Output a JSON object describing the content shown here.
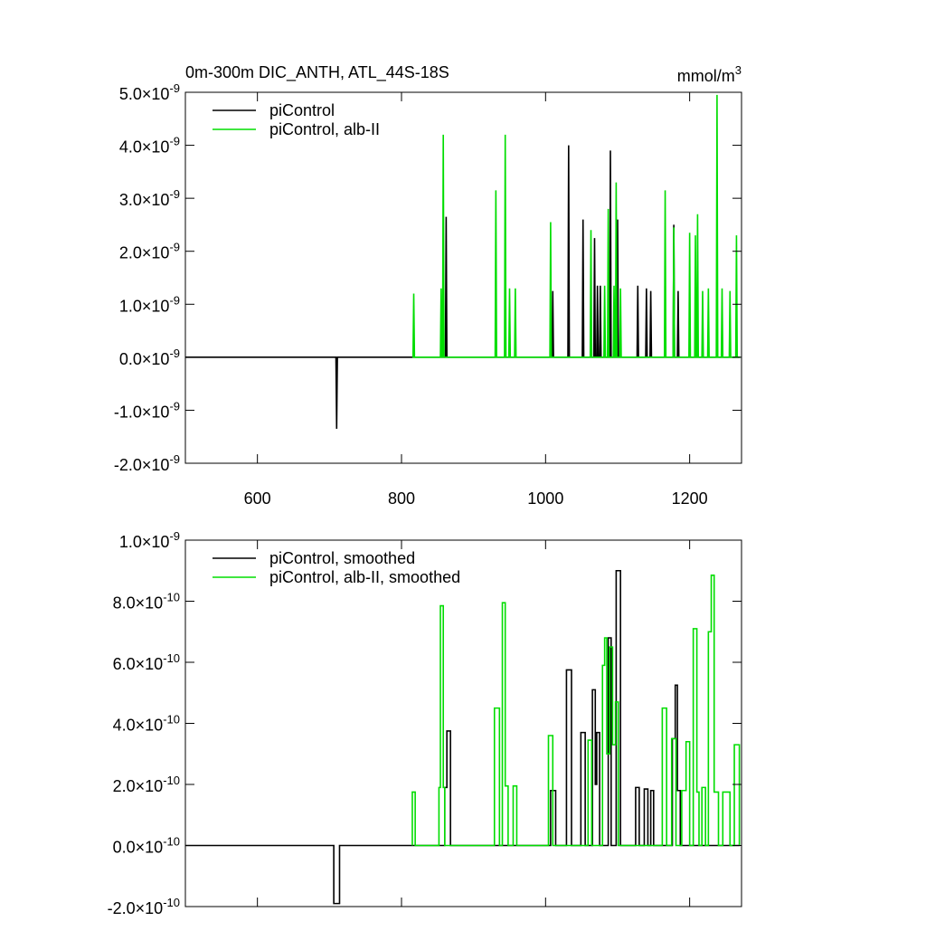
{
  "chart_data": [
    {
      "type": "line",
      "title": "0m-300m DIC_ANTH, ATL_44S-18S",
      "units": "mmol/m^3",
      "xlim": [
        500,
        1272
      ],
      "xticks": [
        600,
        800,
        1000,
        1200
      ],
      "ylim": [
        -2e-09,
        5e-09
      ],
      "yticks": [
        {
          "value": -2e-09,
          "label": "-2.0×10^-9"
        },
        {
          "value": -1e-09,
          "label": "-1.0×10^-9"
        },
        {
          "value": 0,
          "label": "0.0×10^-9"
        },
        {
          "value": 1e-09,
          "label": "1.0×10^-9"
        },
        {
          "value": 2e-09,
          "label": "2.0×10^-9"
        },
        {
          "value": 3e-09,
          "label": "3.0×10^-9"
        },
        {
          "value": 4e-09,
          "label": "4.0×10^-9"
        },
        {
          "value": 5e-09,
          "label": "5.0×10^-9"
        }
      ],
      "series": [
        {
          "name": "piControl",
          "color": "#000000",
          "x": [
            500,
            709,
            710,
            711,
            861,
            862,
            863,
            1009,
            1010,
            1011,
            1031,
            1032,
            1033,
            1051,
            1052,
            1053,
            1067,
            1068,
            1069,
            1071,
            1072,
            1073,
            1075,
            1076,
            1077,
            1089,
            1090,
            1091,
            1099,
            1100,
            1101,
            1127,
            1128,
            1129,
            1139,
            1140,
            1141,
            1145,
            1146,
            1147,
            1177,
            1178,
            1179,
            1183,
            1184,
            1185,
            1270
          ],
          "values": [
            0,
            0,
            -1.35e-09,
            0,
            0,
            2.65e-09,
            0,
            0,
            1.25e-09,
            0,
            0,
            4e-09,
            0,
            0,
            2.6e-09,
            0,
            0,
            2.25e-09,
            0,
            0,
            1.35e-09,
            0,
            0,
            1.35e-09,
            0,
            0,
            3.9e-09,
            0,
            0,
            2.6e-09,
            0,
            0,
            1.35e-09,
            0,
            0,
            1.3e-09,
            0,
            0,
            1.25e-09,
            0,
            0,
            2.5e-09,
            0,
            0,
            1.25e-09,
            0,
            0
          ]
        },
        {
          "name": "piControl, alb-II",
          "color": "#00dd00",
          "x": [
            815,
            816,
            817,
            818,
            854,
            855,
            856,
            857,
            858,
            859,
            930,
            931,
            932,
            943,
            944,
            945,
            949,
            950,
            951,
            957,
            958,
            959,
            1006,
            1007,
            1008,
            1062,
            1063,
            1064,
            1081,
            1082,
            1083,
            1086,
            1087,
            1088,
            1094,
            1095,
            1096,
            1097,
            1098,
            1099,
            1103,
            1104,
            1105,
            1165,
            1166,
            1167,
            1177,
            1178,
            1179,
            1199,
            1200,
            1201,
            1207,
            1208,
            1209,
            1210,
            1211,
            1212,
            1217,
            1218,
            1219,
            1225,
            1226,
            1227,
            1237,
            1238,
            1239,
            1244,
            1245,
            1246,
            1255,
            1256,
            1257,
            1264,
            1265,
            1266,
            1270
          ],
          "values": [
            0,
            0,
            1.2e-09,
            0,
            0,
            1.3e-09,
            0,
            0,
            4.2e-09,
            0,
            0,
            3.15e-09,
            0,
            0,
            4.2e-09,
            0,
            0,
            1.3e-09,
            0,
            0,
            1.3e-09,
            0,
            0,
            2.55e-09,
            0,
            0,
            2.4e-09,
            0,
            0,
            1.35e-09,
            0,
            0,
            2.8e-09,
            0,
            0,
            1.35e-09,
            0,
            0,
            3.3e-09,
            0,
            0,
            1.3e-09,
            0,
            0,
            3.15e-09,
            0,
            0,
            2.45e-09,
            0,
            0,
            2.35e-09,
            0,
            0,
            2.3e-09,
            0,
            0,
            2.7e-09,
            0,
            0,
            1.25e-09,
            0,
            0,
            1.3e-09,
            0,
            0,
            4.95e-09,
            0,
            0,
            1.3e-09,
            0,
            0,
            1.25e-09,
            0,
            0,
            2.3e-09,
            0,
            0
          ]
        }
      ]
    },
    {
      "type": "line",
      "xlim": [
        500,
        1272
      ],
      "xticks": [
        600,
        800,
        1000,
        1200
      ],
      "ylim": [
        -2e-10,
        1e-09
      ],
      "yticks": [
        {
          "value": -2e-10,
          "label": "-2.0×10^-10"
        },
        {
          "value": 0,
          "label": "0.0×10^-10"
        },
        {
          "value": 2e-10,
          "label": "2.0×10^-10"
        },
        {
          "value": 4e-10,
          "label": "4.0×10^-10"
        },
        {
          "value": 6e-10,
          "label": "6.0×10^-10"
        },
        {
          "value": 8e-10,
          "label": "8.0×10^-10"
        },
        {
          "value": 1e-09,
          "label": "1.0×10^-9"
        }
      ],
      "series": [
        {
          "name": "piControl, smoothed",
          "color": "#000000",
          "x": [
            500,
            706,
            706,
            714,
            714,
            860,
            860,
            863,
            863,
            868,
            868,
            1007,
            1007,
            1014,
            1014,
            1029,
            1029,
            1036,
            1036,
            1049,
            1049,
            1055,
            1055,
            1065,
            1065,
            1069,
            1069,
            1071,
            1071,
            1075,
            1075,
            1087,
            1087,
            1091,
            1091,
            1098,
            1098,
            1104,
            1104,
            1125,
            1125,
            1130,
            1130,
            1137,
            1137,
            1142,
            1142,
            1146,
            1146,
            1150,
            1150,
            1176,
            1176,
            1180,
            1180,
            1183,
            1183,
            1187,
            1187,
            1270
          ],
          "values": [
            0,
            0,
            -1.9e-10,
            -1.9e-10,
            0,
            0,
            1.9e-10,
            1.9e-10,
            3.75e-10,
            3.75e-10,
            0,
            0,
            1.8e-10,
            1.8e-10,
            0,
            0,
            5.75e-10,
            5.75e-10,
            0,
            0,
            3.7e-10,
            3.7e-10,
            0,
            0,
            5.1e-10,
            5.1e-10,
            2e-10,
            2e-10,
            3.7e-10,
            3.7e-10,
            0,
            0,
            6.8e-10,
            6.8e-10,
            0,
            0,
            9e-10,
            9e-10,
            0,
            0,
            1.9e-10,
            1.9e-10,
            0,
            0,
            1.85e-10,
            1.85e-10,
            0,
            0,
            1.8e-10,
            1.8e-10,
            0,
            0,
            3.5e-10,
            3.5e-10,
            5.25e-10,
            5.25e-10,
            1.8e-10,
            1.8e-10,
            0,
            0
          ]
        },
        {
          "name": "piControl, alb-II, smoothed",
          "color": "#00dd00",
          "x": [
            815,
            815,
            819,
            819,
            852,
            852,
            854,
            854,
            858,
            858,
            860,
            860,
            929,
            929,
            936,
            936,
            940,
            940,
            944,
            944,
            948,
            948,
            955,
            955,
            960,
            960,
            1004,
            1004,
            1010,
            1010,
            1059,
            1059,
            1064,
            1064,
            1079,
            1079,
            1082,
            1082,
            1085,
            1085,
            1089,
            1089,
            1093,
            1093,
            1097,
            1097,
            1101,
            1101,
            1162,
            1162,
            1168,
            1168,
            1175,
            1175,
            1181,
            1181,
            1189,
            1189,
            1195,
            1195,
            1200,
            1200,
            1205,
            1205,
            1210,
            1210,
            1213,
            1213,
            1217,
            1217,
            1222,
            1222,
            1226,
            1226,
            1230,
            1230,
            1234,
            1234,
            1240,
            1240,
            1246,
            1246,
            1256,
            1256,
            1262,
            1262,
            1269,
            1269
          ],
          "values": [
            0,
            1.75e-10,
            1.75e-10,
            0,
            0,
            1.9e-10,
            1.9e-10,
            7.85e-10,
            7.85e-10,
            1.9e-10,
            1.9e-10,
            0,
            0,
            4.5e-10,
            4.5e-10,
            0,
            0,
            7.95e-10,
            7.95e-10,
            1.95e-10,
            1.95e-10,
            0,
            0,
            1.95e-10,
            1.95e-10,
            0,
            0,
            3.6e-10,
            3.6e-10,
            0,
            0,
            3.45e-10,
            3.45e-10,
            0,
            0,
            5.9e-10,
            5.9e-10,
            6.8e-10,
            6.8e-10,
            3e-10,
            3e-10,
            6.5e-10,
            6.5e-10,
            3.3e-10,
            3.3e-10,
            4.7e-10,
            4.7e-10,
            0,
            0,
            4.5e-10,
            4.5e-10,
            0,
            0,
            3.5e-10,
            3.5e-10,
            0,
            0,
            1.8e-10,
            1.8e-10,
            3.4e-10,
            3.4e-10,
            0,
            0,
            7.1e-10,
            7.1e-10,
            1.75e-10,
            1.75e-10,
            0,
            0,
            1.9e-10,
            1.9e-10,
            0,
            0,
            7e-10,
            7e-10,
            8.85e-10,
            8.85e-10,
            1.75e-10,
            1.75e-10,
            0,
            0,
            1.75e-10,
            1.75e-10,
            0,
            0,
            3.3e-10,
            3.3e-10,
            0
          ]
        }
      ]
    }
  ]
}
